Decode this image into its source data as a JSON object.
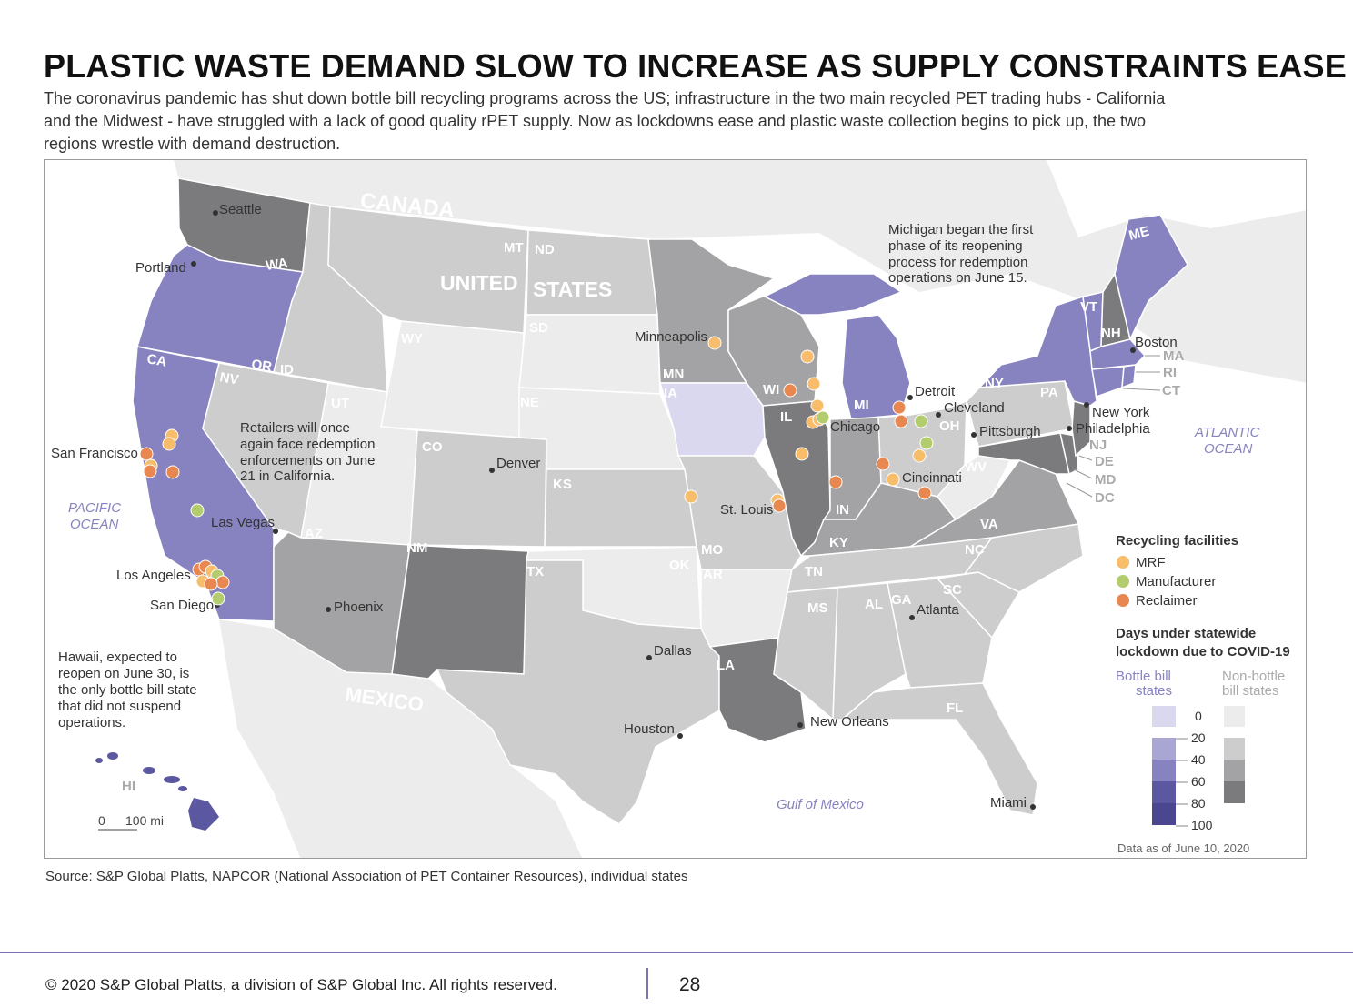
{
  "title": "PLASTIC WASTE DEMAND SLOW TO INCREASE AS SUPPLY CONSTRAINTS EASE",
  "subtitle": "The coronavirus pandemic has shut down bottle bill recycling programs across the US; infrastructure in the two main recycled PET trading hubs - California and the Midwest - have struggled with a lack of good quality rPET supply. Now as lockdowns ease and plastic waste collection begins to pick up, the two regions wrestle with demand destruction.",
  "map": {
    "regions": {
      "canada": "CANADA",
      "us_line1": "UNITED",
      "us_line2": "STATES",
      "mexico": "MEXICO",
      "pacific_line1": "PACIFIC",
      "pacific_line2": "OCEAN",
      "atlantic_line1": "ATLANTIC",
      "atlantic_line2": "OCEAN",
      "gulf": "Gulf of Mexico"
    },
    "states": [
      "WA",
      "OR",
      "CA",
      "NV",
      "ID",
      "MT",
      "WY",
      "UT",
      "CO",
      "AZ",
      "NM",
      "ND",
      "SD",
      "NE",
      "KS",
      "OK",
      "TX",
      "MN",
      "IA",
      "MO",
      "AR",
      "LA",
      "WI",
      "IL",
      "MI",
      "IN",
      "KY",
      "TN",
      "MS",
      "AL",
      "GA",
      "FL",
      "SC",
      "NC",
      "VA",
      "WV",
      "OH",
      "PA",
      "NY",
      "VT",
      "NH",
      "ME",
      "MA",
      "RI",
      "CT",
      "NJ",
      "DE",
      "MD",
      "DC",
      "HI"
    ],
    "cities": [
      "Seattle",
      "Portland",
      "San Francisco",
      "Las Vegas",
      "Los Angeles",
      "San Diego",
      "Phoenix",
      "Denver",
      "Minneapolis",
      "St. Louis",
      "Chicago",
      "Detroit",
      "Cleveland",
      "Pittsburgh",
      "Cincinnati",
      "Dallas",
      "Houston",
      "New Orleans",
      "Atlanta",
      "Miami",
      "Boston",
      "New York",
      "Philadelphia"
    ],
    "annotations": {
      "michigan": [
        "Michigan began the first",
        "phase of its reopening",
        "process for redemption",
        "operations on June 15."
      ],
      "california": [
        "Retailers will once",
        "again face redemption",
        "enforcements on June",
        "21 in California."
      ],
      "hawaii": [
        "Hawaii, expected to",
        "reopen on June 30, is",
        "the only bottle bill state",
        "that did not suspend",
        "operations."
      ]
    },
    "scale_zero": "0",
    "scale_label": "100 mi"
  },
  "legend": {
    "facilities_title": "Recycling facilities",
    "facilities": [
      {
        "label": "MRF",
        "color": "#f7bd6a"
      },
      {
        "label": "Manufacturer",
        "color": "#b3cc6e"
      },
      {
        "label": "Reclaimer",
        "color": "#e8874f"
      }
    ],
    "days_title_line1": "Days under statewide",
    "days_title_line2": "lockdown due to COVID-19",
    "bottle_col_line1": "Bottle bill",
    "bottle_col_line2": "states",
    "nonbottle_col_line1": "Non-bottle",
    "nonbottle_col_line2": "bill states",
    "bottle_colors": [
      "#d9d8ee",
      "#a9a6d4",
      "#8783c0",
      "#5b57a0"
    ],
    "nonbottle_colors": [
      "#ececec",
      "#cdcdce",
      "#a3a3a5",
      "#7b7b7e"
    ],
    "ticks": [
      "0",
      "20",
      "40",
      "60",
      "80",
      "100"
    ],
    "data_note": "Data as of June 10, 2020"
  },
  "source": "Source: S&P Global Platts, NAPCOR (National Association of PET Container Resources), individual states",
  "footer": {
    "copyright": "© 2020 S&P Global Platts, a division of S&P Global Inc. All rights reserved.",
    "page": "28"
  }
}
